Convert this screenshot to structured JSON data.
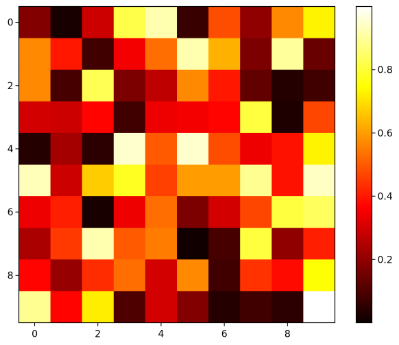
{
  "chart_data": {
    "type": "heatmap",
    "title": "",
    "xlabel": "",
    "ylabel": "",
    "colormap": "hot",
    "rows": 10,
    "cols": 10,
    "x_ticks": [
      0,
      2,
      4,
      6,
      8
    ],
    "x_tick_labels": [
      "0",
      "2",
      "4",
      "6",
      "8"
    ],
    "y_ticks": [
      0,
      2,
      4,
      6,
      8
    ],
    "y_tick_labels": [
      "0",
      "2",
      "4",
      "6",
      "8"
    ],
    "colorbar": {
      "range": [
        0,
        1
      ],
      "ticks": [
        0.2,
        0.4,
        0.6,
        0.8
      ],
      "tick_labels": [
        "0.2",
        "0.4",
        "0.6",
        "0.8"
      ]
    },
    "values": [
      [
        0.18,
        0.02,
        0.29,
        0.82,
        0.92,
        0.07,
        0.48,
        0.2,
        0.57,
        0.73
      ],
      [
        0.57,
        0.4,
        0.08,
        0.35,
        0.53,
        0.92,
        0.63,
        0.17,
        0.9,
        0.14
      ],
      [
        0.57,
        0.09,
        0.83,
        0.17,
        0.27,
        0.57,
        0.4,
        0.13,
        0.04,
        0.08
      ],
      [
        0.3,
        0.29,
        0.37,
        0.08,
        0.34,
        0.35,
        0.37,
        0.81,
        0.03,
        0.47
      ],
      [
        0.04,
        0.23,
        0.05,
        0.95,
        0.5,
        0.95,
        0.48,
        0.34,
        0.39,
        0.73
      ],
      [
        0.93,
        0.29,
        0.67,
        0.78,
        0.46,
        0.6,
        0.6,
        0.89,
        0.39,
        0.94
      ],
      [
        0.34,
        0.41,
        0.02,
        0.34,
        0.53,
        0.17,
        0.3,
        0.47,
        0.81,
        0.84
      ],
      [
        0.24,
        0.45,
        0.92,
        0.5,
        0.55,
        0.01,
        0.09,
        0.81,
        0.2,
        0.41
      ],
      [
        0.37,
        0.21,
        0.43,
        0.53,
        0.3,
        0.57,
        0.08,
        0.44,
        0.38,
        0.75
      ],
      [
        0.89,
        0.37,
        0.72,
        0.1,
        0.3,
        0.18,
        0.04,
        0.08,
        0.05,
        1.0
      ]
    ]
  }
}
